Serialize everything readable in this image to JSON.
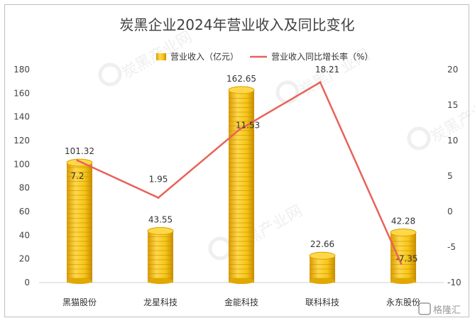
{
  "chart_data": {
    "type": "bar",
    "title": "炭黑企业2024年营业收入及同比变化",
    "categories": [
      "黑猫股份",
      "龙星科技",
      "金能科技",
      "联科科技",
      "永东股份"
    ],
    "series": [
      {
        "name": "营业收入（亿元）",
        "type": "bar",
        "axis": "left",
        "values": [
          101.32,
          43.55,
          162.65,
          22.66,
          42.28
        ],
        "labels": [
          "101.32",
          "43.55",
          "162.65",
          "22.66",
          "42.28"
        ]
      },
      {
        "name": "营业收入同比增长率（%）",
        "type": "line",
        "axis": "right",
        "values": [
          7.2,
          1.95,
          11.53,
          18.21,
          -7.35
        ],
        "labels": [
          "7.2",
          "1.95",
          "11.53",
          "18.21",
          "-7.35"
        ]
      }
    ],
    "y_left": {
      "ylim": [
        0,
        180
      ],
      "ticks": [
        "0",
        "20",
        "40",
        "60",
        "80",
        "100",
        "120",
        "140",
        "160",
        "180"
      ]
    },
    "y_right": {
      "ylim": [
        -10,
        20
      ],
      "ticks": [
        "-10",
        "-5",
        "0",
        "5",
        "10",
        "15",
        "20"
      ]
    },
    "legend_position": "top",
    "grid": false,
    "colors": {
      "bar": "#f5c518",
      "bar_dark": "#e0a800",
      "line": "#e8625a"
    }
  },
  "watermark": {
    "text": "炭黑产业网",
    "brand": "格隆汇"
  }
}
